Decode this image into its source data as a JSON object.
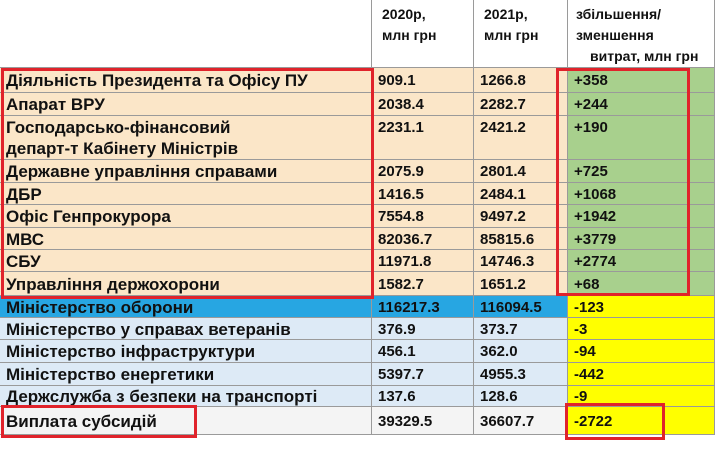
{
  "header": {
    "cols": [
      {
        "lines": []
      },
      {
        "lines": [
          "2020р,",
          "млн грн"
        ]
      },
      {
        "lines": [
          "2021р,",
          "млн грн"
        ]
      },
      {
        "lines": [
          "збільшення/",
          "зменшення",
          "витрат, млн грн"
        ]
      }
    ]
  },
  "table": {
    "rows": [
      [
        "Діяльність Президента та Офісу ПУ",
        "909.1",
        "1266.8",
        "+358"
      ],
      [
        "Апарат ВРУ",
        "2038.4",
        "2282.7",
        "+244"
      ],
      [
        [
          "Господарсько-фінансовий",
          "департ-т Кабінету Міністрів"
        ],
        "2231.1",
        "2421.2",
        "+190"
      ],
      [
        "Державне управління справами",
        "2075.9",
        "2801.4",
        "+725"
      ],
      [
        "ДБР",
        "1416.5",
        "2484.1",
        "+1068"
      ],
      [
        "Офіс Генпрокурора",
        "7554.8",
        "9497.2",
        "+1942"
      ],
      [
        "МВС",
        "82036.7",
        "85815.6",
        "+3779"
      ],
      [
        "СБУ",
        "11971.8",
        "14746.3",
        "+2774"
      ],
      [
        "Управління держохорони",
        "1582.7",
        "1651.2",
        "+68"
      ],
      [
        "Міністерство оборони",
        "116217.3",
        "116094.5",
        "-123"
      ],
      [
        "Міністерство у справах ветеранів",
        "376.9",
        "373.7",
        "-3"
      ],
      [
        "Міністерство інфраструктури",
        "456.1",
        "362.0",
        "-94"
      ],
      [
        "Міністерство енергетики",
        "5397.7",
        "4955.3",
        "-442"
      ],
      [
        "Держслужба з безпеки на транспорті",
        "137.6",
        "128.6",
        "-9"
      ],
      [
        "Виплата субсидій",
        "39329.5",
        "36607.7",
        "-2722"
      ]
    ]
  }
}
